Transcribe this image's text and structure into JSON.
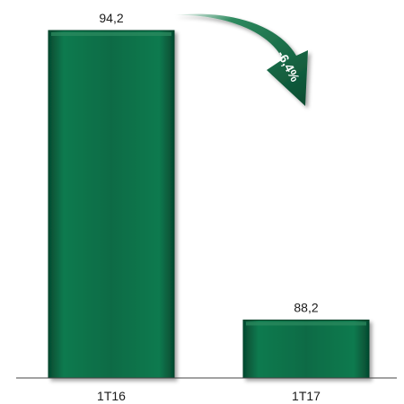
{
  "chart_data": {
    "type": "bar",
    "categories": [
      "1T16",
      "1T17"
    ],
    "values": [
      94.2,
      88.2
    ],
    "value_labels": [
      "94,2",
      "88,2"
    ],
    "ylim": [
      0,
      94.2
    ],
    "baseline": "broken-axis",
    "grid": false,
    "legend": "none",
    "annotation": {
      "text": "-6,4%",
      "shape": "curved-arrow-down",
      "from": "1T16",
      "to": "1T17"
    },
    "colors": {
      "bar": "#0b6b45",
      "bar_highlight": "#2e8a5f",
      "bar_shadow": "#053f27",
      "axis": "#444444",
      "arrow": "#0b6b45"
    }
  }
}
